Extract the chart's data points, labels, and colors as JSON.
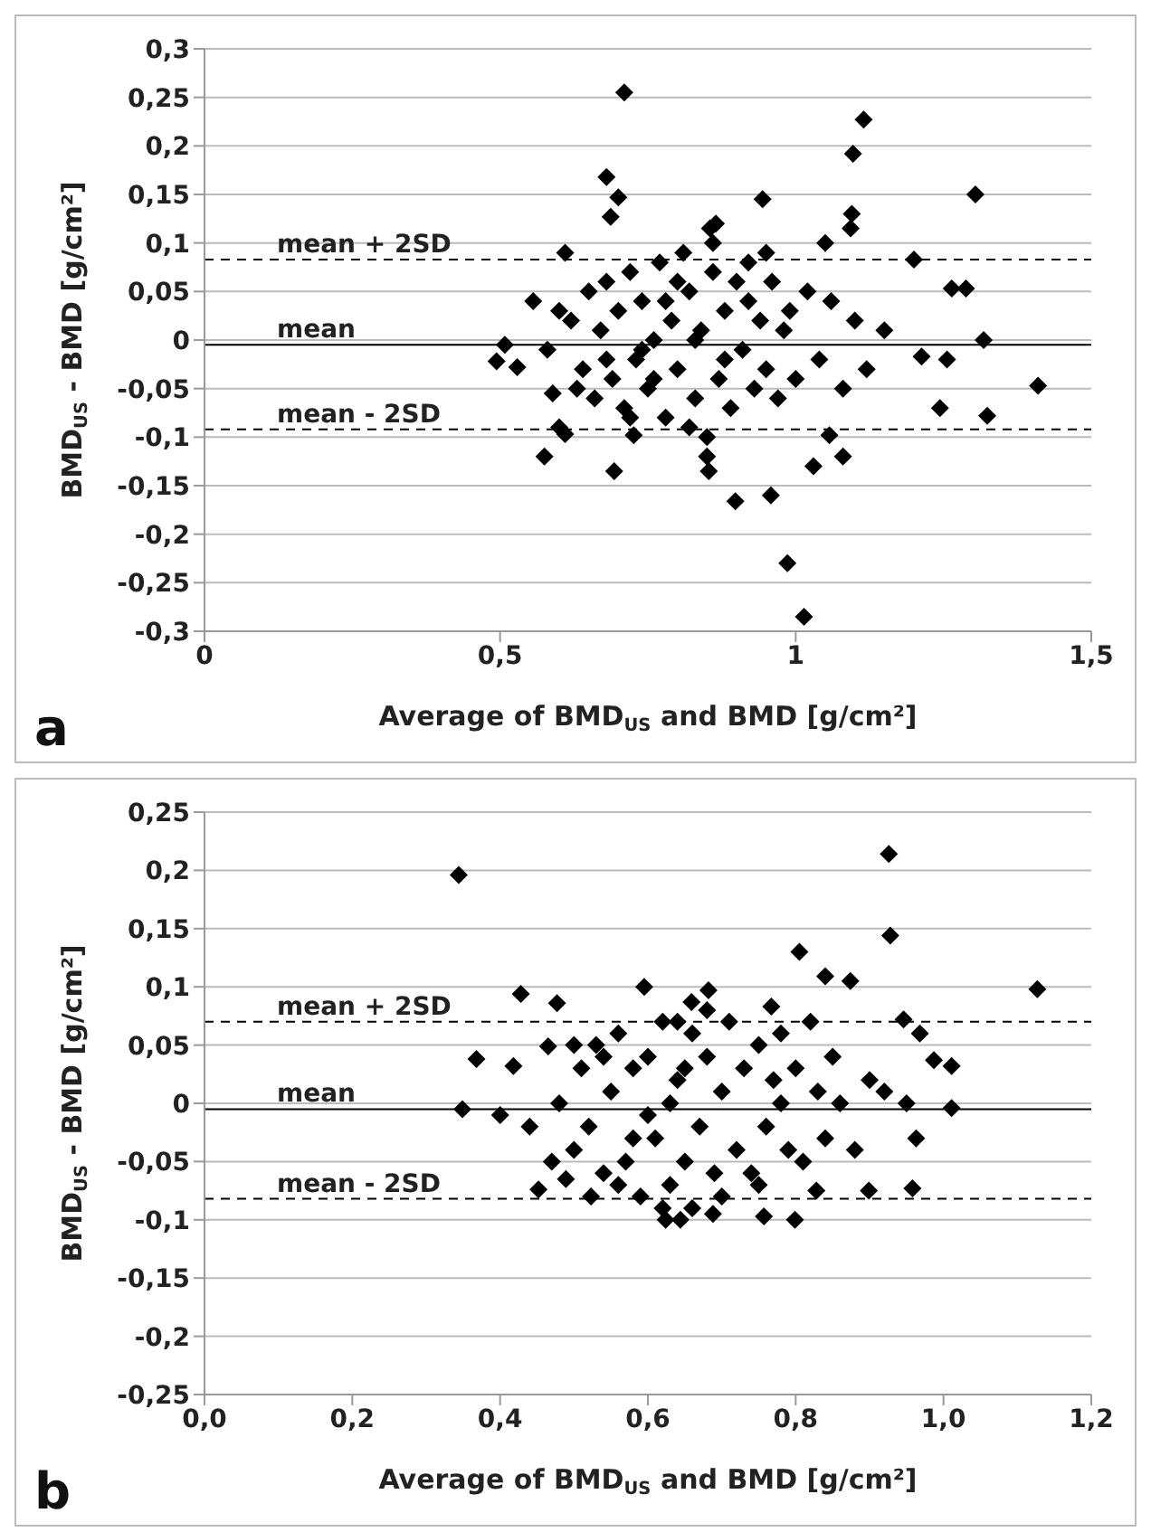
{
  "chart_data": [
    {
      "type": "scatter",
      "xlabel": "Average of BMD$_{US}$ and BMD [g/cm²]",
      "ylabel": "BMD$_{US}$ - BMD [g/cm²]",
      "annotations": [
        "a"
      ],
      "marker": "diamond",
      "grid": "y",
      "xlim": [
        0,
        1.5
      ],
      "xticks": [
        0,
        {
          "value": 0.5,
          "label": "0,5"
        },
        1,
        {
          "value": 1.5,
          "label": "1,5"
        }
      ],
      "ylim": [
        -0.3,
        0.3
      ],
      "yticks": [
        {
          "value": -0.3,
          "label": "-0,3"
        },
        {
          "value": -0.25,
          "label": "-0,25"
        },
        {
          "value": -0.2,
          "label": "-0,2"
        },
        {
          "value": -0.15,
          "label": "-0,15"
        },
        {
          "value": -0.1,
          "label": "-0,1"
        },
        {
          "value": -0.05,
          "label": "-0,05"
        },
        0,
        {
          "value": 0.05,
          "label": "0,05"
        },
        {
          "value": 0.1,
          "label": "0,1"
        },
        {
          "value": 0.15,
          "label": "0,15"
        },
        {
          "value": 0.2,
          "label": "0,2"
        },
        {
          "value": 0.25,
          "label": "0,25"
        },
        {
          "value": 0.3,
          "label": "0,3"
        }
      ],
      "ref_lines": [
        {
          "axis": "y",
          "value": 0.083,
          "label": "mean + 2SD",
          "line_style": "dashed"
        },
        {
          "axis": "y",
          "value": -0.005,
          "label": "mean",
          "line_style": "solid"
        },
        {
          "axis": "y",
          "value": -0.092,
          "label": "mean - 2SD",
          "line_style": "dashed"
        }
      ],
      "series": [
        {
          "color": "#000000",
          "x": [
            0.62,
            0.64,
            0.65,
            0.66,
            0.67,
            0.68,
            0.69,
            0.7,
            0.71,
            0.72,
            0.73,
            0.74,
            0.75,
            0.76,
            0.77,
            0.78,
            0.79,
            0.8,
            0.81,
            0.82,
            0.83,
            0.84,
            0.85,
            0.86,
            0.87,
            0.88,
            0.89,
            0.9,
            0.91,
            0.92,
            0.93,
            0.94,
            0.95,
            0.96,
            0.97,
            0.98,
            0.99,
            1.0,
            1.02,
            1.04,
            1.06,
            1.08,
            1.1,
            1.12,
            1.15,
            0.58,
            0.6,
            0.63,
            0.76,
            0.8,
            0.83,
            0.78,
            0.74,
            0.88,
            0.92,
            0.86,
            0.82,
            0.72,
            0.68,
            0.95,
            1.05,
            0.71,
            1.115,
            1.097,
            0.68,
            0.7,
            0.687,
            1.304,
            0.944,
            1.095,
            1.093,
            0.865,
            0.855,
            0.61,
            1.2,
            1.264,
            1.288,
            1.318,
            0.556,
            0.508,
            0.494,
            0.529,
            0.575,
            0.589,
            0.6,
            0.61,
            0.693,
            0.726,
            0.898,
            0.958,
            0.986,
            1.014,
            1.03,
            1.08,
            1.057,
            1.244,
            1.256,
            1.324,
            1.41,
            0.853,
            0.85,
            1.213
          ],
          "values": [
            0.02,
            -0.03,
            0.05,
            -0.06,
            0.01,
            0.06,
            -0.04,
            0.03,
            -0.07,
            0.07,
            -0.02,
            0.04,
            -0.05,
            0.0,
            0.08,
            -0.08,
            0.02,
            -0.03,
            0.09,
            0.05,
            -0.06,
            0.01,
            -0.1,
            0.07,
            -0.04,
            0.03,
            -0.07,
            0.06,
            -0.01,
            0.04,
            -0.05,
            0.02,
            -0.03,
            0.06,
            -0.06,
            0.01,
            0.03,
            -0.04,
            0.05,
            -0.02,
            0.04,
            -0.05,
            0.02,
            -0.03,
            0.01,
            -0.01,
            0.03,
            -0.05,
            -0.04,
            0.06,
            0.0,
            0.04,
            -0.01,
            -0.02,
            0.08,
            0.1,
            -0.09,
            -0.08,
            -0.02,
            0.09,
            0.1,
            0.255,
            0.227,
            0.192,
            0.168,
            0.147,
            0.127,
            0.15,
            0.145,
            0.13,
            0.115,
            0.12,
            0.115,
            0.09,
            0.083,
            0.053,
            0.053,
            0.0,
            0.04,
            -0.005,
            -0.022,
            -0.028,
            -0.12,
            -0.055,
            -0.09,
            -0.097,
            -0.135,
            -0.098,
            -0.166,
            -0.16,
            -0.23,
            -0.285,
            -0.13,
            -0.12,
            -0.098,
            -0.07,
            -0.02,
            -0.078,
            -0.047,
            -0.135,
            -0.12,
            -0.017
          ]
        }
      ]
    },
    {
      "type": "scatter",
      "xlabel": "Average of BMD$_{US}$ and BMD [g/cm²]",
      "ylabel": "BMD$_{US}$ - BMD [g/cm²]",
      "annotations": [
        "b"
      ],
      "marker": "diamond",
      "grid": "y",
      "xlim": [
        0,
        1.2
      ],
      "xticks": [
        {
          "value": 0,
          "label": "0,0"
        },
        {
          "value": 0.2,
          "label": "0,2"
        },
        {
          "value": 0.4,
          "label": "0,4"
        },
        {
          "value": 0.6,
          "label": "0,6"
        },
        {
          "value": 0.8,
          "label": "0,8"
        },
        {
          "value": 1.0,
          "label": "1,0"
        },
        {
          "value": 1.2,
          "label": "1,2"
        }
      ],
      "ylim": [
        -0.25,
        0.25
      ],
      "yticks": [
        {
          "value": -0.25,
          "label": "-0,25"
        },
        {
          "value": -0.2,
          "label": "-0,2"
        },
        {
          "value": -0.15,
          "label": "-0,15"
        },
        {
          "value": -0.1,
          "label": "-0,1"
        },
        {
          "value": -0.05,
          "label": "-0,05"
        },
        0,
        {
          "value": 0.05,
          "label": "0,05"
        },
        {
          "value": 0.1,
          "label": "0,1"
        },
        {
          "value": 0.15,
          "label": "0,15"
        },
        {
          "value": 0.2,
          "label": "0,2"
        },
        {
          "value": 0.25,
          "label": "0,25"
        }
      ],
      "ref_lines": [
        {
          "axis": "y",
          "value": 0.07,
          "label": "mean + 2SD",
          "line_style": "dashed"
        },
        {
          "axis": "y",
          "value": -0.005,
          "label": "mean",
          "line_style": "solid"
        },
        {
          "axis": "y",
          "value": -0.082,
          "label": "mean - 2SD",
          "line_style": "dashed"
        }
      ],
      "series": [
        {
          "color": "#000000",
          "x": [
            0.48,
            0.5,
            0.51,
            0.52,
            0.53,
            0.54,
            0.55,
            0.56,
            0.57,
            0.58,
            0.59,
            0.6,
            0.61,
            0.62,
            0.63,
            0.64,
            0.65,
            0.66,
            0.67,
            0.68,
            0.69,
            0.7,
            0.71,
            0.72,
            0.73,
            0.74,
            0.75,
            0.76,
            0.77,
            0.78,
            0.79,
            0.8,
            0.81,
            0.82,
            0.83,
            0.84,
            0.85,
            0.86,
            0.88,
            0.9,
            0.92,
            0.95,
            0.6,
            0.63,
            0.65,
            0.58,
            0.7,
            0.66,
            0.62,
            0.56,
            0.54,
            0.75,
            0.78,
            0.68,
            0.64,
            0.47,
            0.5,
            0.344,
            0.926,
            0.928,
            1.127,
            0.805,
            0.84,
            0.874,
            0.595,
            0.682,
            0.659,
            0.428,
            0.477,
            0.368,
            0.418,
            0.465,
            0.767,
            0.946,
            0.968,
            1.011,
            0.987,
            0.349,
            0.4,
            0.44,
            0.452,
            0.489,
            0.523,
            0.624,
            0.644,
            0.688,
            0.757,
            0.799,
            0.828,
            0.899,
            0.958,
            1.011,
            0.963
          ],
          "values": [
            0.0,
            -0.04,
            0.03,
            -0.02,
            0.05,
            -0.06,
            0.01,
            0.06,
            -0.05,
            0.03,
            -0.08,
            0.04,
            -0.03,
            0.07,
            -0.07,
            0.02,
            -0.05,
            0.06,
            -0.02,
            0.04,
            -0.06,
            0.01,
            0.07,
            -0.04,
            0.03,
            -0.06,
            0.05,
            -0.02,
            0.02,
            0.06,
            -0.04,
            0.03,
            -0.05,
            0.07,
            0.01,
            -0.03,
            0.04,
            0.0,
            -0.04,
            0.02,
            0.01,
            0.0,
            -0.01,
            0.0,
            0.03,
            -0.03,
            -0.08,
            -0.09,
            -0.09,
            -0.07,
            0.04,
            -0.07,
            0.0,
            0.08,
            0.07,
            -0.05,
            0.05,
            0.196,
            0.214,
            0.144,
            0.098,
            0.13,
            0.109,
            0.105,
            0.1,
            0.097,
            0.087,
            0.094,
            0.086,
            0.038,
            0.032,
            0.049,
            0.083,
            0.072,
            0.06,
            0.032,
            0.037,
            -0.005,
            -0.01,
            -0.02,
            -0.074,
            -0.065,
            -0.08,
            -0.1,
            -0.1,
            -0.095,
            -0.097,
            -0.1,
            -0.075,
            -0.075,
            -0.073,
            -0.004,
            -0.03
          ]
        }
      ]
    }
  ]
}
